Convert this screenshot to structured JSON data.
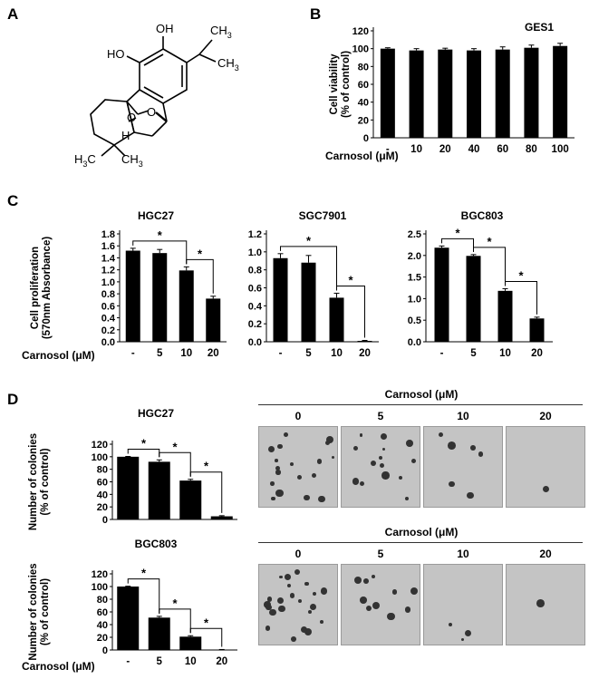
{
  "panels": {
    "a": "A",
    "b": "B",
    "c": "C",
    "d": "D"
  },
  "structure": {
    "label_oh1": "OH",
    "label_oh2": "HO",
    "label_ch3_a": "CH",
    "label_ch3_b": "CH",
    "sub3": "3",
    "label_o": "O",
    "label_o2": "O",
    "label_h": "H",
    "label_h3c": "H",
    "label_h3c_c": "C",
    "label_ch3_c": "CH"
  },
  "carnosol_label": "Carnosol (μM)",
  "carnosol_label_b": "Carnosol (μM)",
  "chart_data": [
    {
      "id": "B",
      "type": "bar",
      "title": "GES1",
      "ylabel": "Cell viability (% of control)",
      "ylabel_lines": [
        "Cell viability",
        "(% of control)"
      ],
      "categories": [
        "-",
        "10",
        "20",
        "40",
        "60",
        "80",
        "100"
      ],
      "values": [
        100,
        98,
        99,
        98,
        99,
        101,
        103
      ],
      "errors": [
        1,
        2,
        1.5,
        2,
        3,
        3,
        3
      ],
      "ylim": [
        0,
        120
      ],
      "yticks": [
        "0",
        "20",
        "40",
        "60",
        "80",
        "100",
        "120"
      ],
      "brackets": []
    },
    {
      "id": "C1",
      "type": "bar",
      "title": "HGC27",
      "ylabel": "Cell proliferation (570nm Absorbance)",
      "ylabel_lines": [
        "Cell proliferation",
        "(570nm Absorbance)"
      ],
      "categories": [
        "-",
        "5",
        "10",
        "20"
      ],
      "values": [
        1.52,
        1.48,
        1.19,
        0.72
      ],
      "errors": [
        0.04,
        0.06,
        0.06,
        0.04
      ],
      "ylim": [
        0,
        1.8
      ],
      "yticks": [
        "0.0",
        "0.2",
        "0.4",
        "0.6",
        "0.8",
        "1.0",
        "1.2",
        "1.4",
        "1.6",
        "1.8"
      ],
      "brackets": [
        {
          "from": 0,
          "to": 2,
          "label": "*"
        },
        {
          "from": 2,
          "to": 3,
          "label": "*"
        }
      ]
    },
    {
      "id": "C2",
      "type": "bar",
      "title": "SGC7901",
      "ylabel": "",
      "categories": [
        "-",
        "5",
        "10",
        "20"
      ],
      "values": [
        0.93,
        0.88,
        0.49,
        0.01
      ],
      "errors": [
        0.05,
        0.08,
        0.05,
        0.005
      ],
      "ylim": [
        0,
        1.2
      ],
      "yticks": [
        "0.0",
        "0.2",
        "0.4",
        "0.6",
        "0.8",
        "1.0",
        "1.2"
      ],
      "brackets": [
        {
          "from": 0,
          "to": 2,
          "label": "*"
        },
        {
          "from": 2,
          "to": 3,
          "label": "*"
        }
      ]
    },
    {
      "id": "C3",
      "type": "bar",
      "title": "BGC803",
      "ylabel": "",
      "categories": [
        "-",
        "5",
        "10",
        "20"
      ],
      "values": [
        2.18,
        1.99,
        1.18,
        0.54
      ],
      "errors": [
        0.04,
        0.03,
        0.05,
        0.03
      ],
      "ylim": [
        0,
        2.5
      ],
      "yticks": [
        "0.0",
        "0.5",
        "1.0",
        "1.5",
        "2.0",
        "2.5"
      ],
      "brackets": [
        {
          "from": 0,
          "to": 1,
          "label": "*"
        },
        {
          "from": 1,
          "to": 2,
          "label": "*"
        },
        {
          "from": 2,
          "to": 3,
          "label": "*"
        }
      ]
    },
    {
      "id": "D1",
      "type": "bar",
      "title": "HGC27",
      "ylabel": "Number of colonies (% of control)",
      "ylabel_lines": [
        "Number of colonies",
        "(% of control)"
      ],
      "categories": [
        "-",
        "5",
        "10",
        "20"
      ],
      "values": [
        100,
        92,
        62,
        5
      ],
      "errors": [
        0.5,
        3,
        2,
        1
      ],
      "ylim": [
        0,
        120
      ],
      "yticks": [
        "0",
        "20",
        "40",
        "60",
        "80",
        "100",
        "120"
      ],
      "brackets": [
        {
          "from": 0,
          "to": 1,
          "label": "*"
        },
        {
          "from": 1,
          "to": 2,
          "label": "*"
        },
        {
          "from": 2,
          "to": 3,
          "label": "*"
        }
      ]
    },
    {
      "id": "D2",
      "type": "bar",
      "title": "BGC803",
      "ylabel": "Number of colonies (% of control)",
      "ylabel_lines": [
        "Number of colonies",
        "(% of control)"
      ],
      "categories": [
        "-",
        "5",
        "10",
        "20"
      ],
      "values": [
        100,
        51,
        21,
        0.5
      ],
      "errors": [
        0.5,
        2,
        1.5,
        0.3
      ],
      "ylim": [
        0,
        120
      ],
      "yticks": [
        "0",
        "20",
        "40",
        "60",
        "80",
        "100",
        "120"
      ],
      "brackets": [
        {
          "from": 0,
          "to": 1,
          "label": "*"
        },
        {
          "from": 1,
          "to": 2,
          "label": "*"
        },
        {
          "from": 2,
          "to": 3,
          "label": "*"
        }
      ]
    }
  ],
  "colonies": {
    "header": "Carnosol (μM)",
    "doses": [
      "0",
      "5",
      "10",
      "20"
    ]
  }
}
